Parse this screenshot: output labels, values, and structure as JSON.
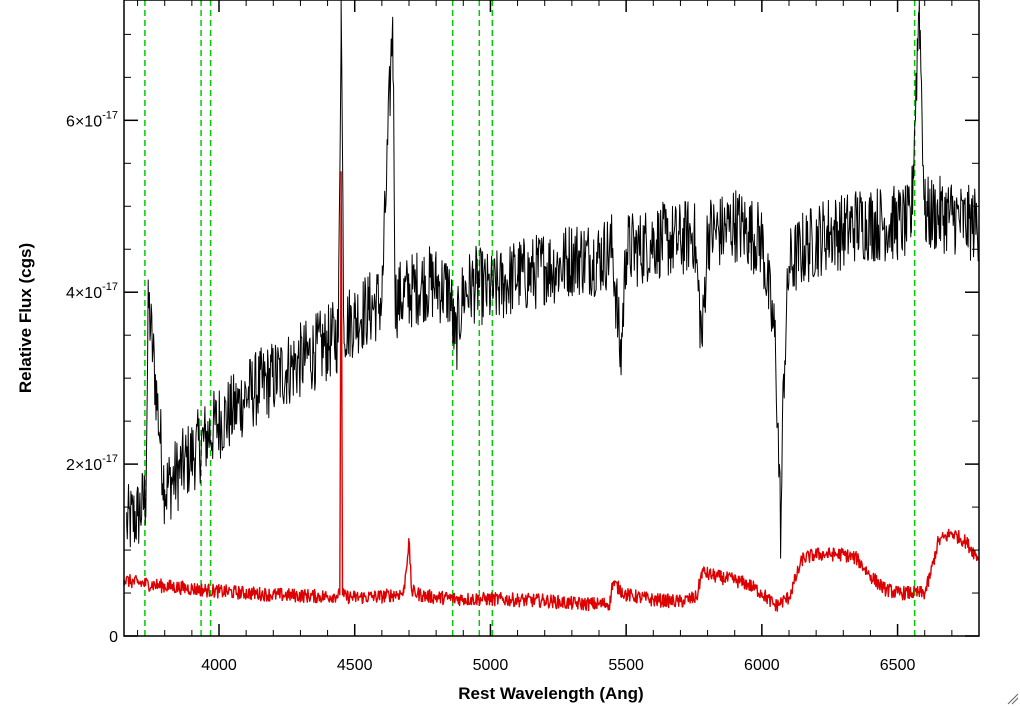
{
  "chart_data": {
    "type": "line",
    "xlabel": "Rest Wavelength (Ang)",
    "ylabel": "Relative Flux (cgs)",
    "xlim": [
      3650,
      6800
    ],
    "ylim": [
      0,
      7.4e-17
    ],
    "x_ticks": [
      4000,
      4500,
      5000,
      5500,
      6000,
      6500
    ],
    "x_tick_labels": [
      "4000",
      "4500",
      "5000",
      "5500",
      "6000",
      "6500"
    ],
    "y_ticks": [
      0,
      2e-17,
      4e-17,
      6e-17
    ],
    "y_tick_labels": [
      {
        "mantissa": "0",
        "exponent": ""
      },
      {
        "mantissa": "2×10",
        "exponent": "-17"
      },
      {
        "mantissa": "4×10",
        "exponent": "-17"
      },
      {
        "mantissa": "6×10",
        "exponent": "-17"
      }
    ],
    "grid": false,
    "vlines": [
      3727,
      3934,
      3969,
      4861,
      4959,
      5007,
      6563
    ],
    "vline_color": "#00cc00",
    "series": [
      {
        "color": "#000000",
        "x": [
          3660,
          3700,
          3730,
          3740,
          3800,
          3850,
          3900,
          3950,
          4000,
          4050,
          4100,
          4150,
          4200,
          4250,
          4300,
          4350,
          4400,
          4440,
          4450,
          4460,
          4500,
          4550,
          4600,
          4640,
          4650,
          4700,
          4750,
          4800,
          4850,
          4870,
          4900,
          4950,
          5000,
          5050,
          5100,
          5150,
          5200,
          5250,
          5300,
          5350,
          5400,
          5450,
          5480,
          5500,
          5550,
          5600,
          5650,
          5700,
          5750,
          5780,
          5800,
          5850,
          5900,
          5950,
          6000,
          6050,
          6070,
          6080,
          6100,
          6150,
          6200,
          6250,
          6300,
          6350,
          6400,
          6450,
          6500,
          6550,
          6580,
          6600,
          6650,
          6700,
          6750,
          6800
        ],
        "y": [
          1.3e-17,
          1.4e-17,
          1.6e-17,
          3.9e-17,
          1.7e-17,
          1.9e-17,
          2.1e-17,
          2.3e-17,
          2.5e-17,
          2.6e-17,
          2.8e-17,
          2.9e-17,
          3e-17,
          3.1e-17,
          3.2e-17,
          3.3e-17,
          3.4e-17,
          3.5e-17,
          7.4e-17,
          3.6e-17,
          3.7e-17,
          3.8e-17,
          3.9e-17,
          7.2e-17,
          3.9e-17,
          4e-17,
          4.1e-17,
          4.1e-17,
          4e-17,
          3.4e-17,
          4e-17,
          4.1e-17,
          4e-17,
          4.1e-17,
          4.2e-17,
          4.2e-17,
          4.3e-17,
          4.3e-17,
          4.4e-17,
          4.4e-17,
          4.4e-17,
          4.5e-17,
          3.2e-17,
          4.5e-17,
          4.5e-17,
          4.6e-17,
          4.6e-17,
          4.6e-17,
          4.7e-17,
          3.4e-17,
          4.7e-17,
          4.7e-17,
          4.8e-17,
          4.7e-17,
          4.6e-17,
          3.4e-17,
          1.2e-17,
          3e-17,
          4.3e-17,
          4.5e-17,
          4.6e-17,
          4.7e-17,
          4.7e-17,
          4.8e-17,
          4.8e-17,
          4.8e-17,
          4.8e-17,
          4.8e-17,
          7.4e-17,
          4.9e-17,
          4.9e-17,
          4.9e-17,
          4.8e-17,
          4.8e-17
        ],
        "noise": 4.5e-18
      },
      {
        "color": "#dd0000",
        "x": [
          3650,
          3700,
          3800,
          3900,
          4000,
          4100,
          4200,
          4300,
          4400,
          4445,
          4450,
          4455,
          4460,
          4500,
          4600,
          4680,
          4700,
          4710,
          4750,
          4800,
          4900,
          5000,
          5100,
          5200,
          5300,
          5400,
          5440,
          5450,
          5500,
          5550,
          5600,
          5700,
          5760,
          5780,
          5800,
          5850,
          5900,
          5950,
          6000,
          6050,
          6100,
          6150,
          6200,
          6250,
          6300,
          6350,
          6400,
          6450,
          6500,
          6550,
          6600,
          6620,
          6650,
          6700,
          6750,
          6800
        ],
        "y": [
          6.5e-18,
          6.2e-18,
          5.8e-18,
          5.5e-18,
          5.2e-18,
          5e-18,
          4.8e-18,
          4.7e-18,
          4.6e-18,
          4.8e-18,
          5.4e-17,
          5e-18,
          4.6e-18,
          4.5e-18,
          4.6e-18,
          5e-18,
          1.1e-17,
          5.2e-18,
          4.7e-18,
          4.5e-18,
          4.3e-18,
          4.3e-18,
          4.2e-18,
          4.1e-18,
          3.8e-18,
          3.7e-18,
          3.8e-18,
          6.2e-18,
          4.8e-18,
          4.5e-18,
          4.2e-18,
          4e-18,
          4.5e-18,
          7.5e-18,
          7.2e-18,
          6.8e-18,
          6.5e-18,
          6e-18,
          5e-18,
          3.5e-18,
          4.5e-18,
          9e-18,
          9.5e-18,
          9.5e-18,
          9.5e-18,
          9e-18,
          7e-18,
          5.5e-18,
          5e-18,
          5e-18,
          5e-18,
          7e-18,
          1.1e-17,
          1.2e-17,
          1.1e-17,
          9e-18
        ],
        "noise": 8e-19
      }
    ]
  }
}
